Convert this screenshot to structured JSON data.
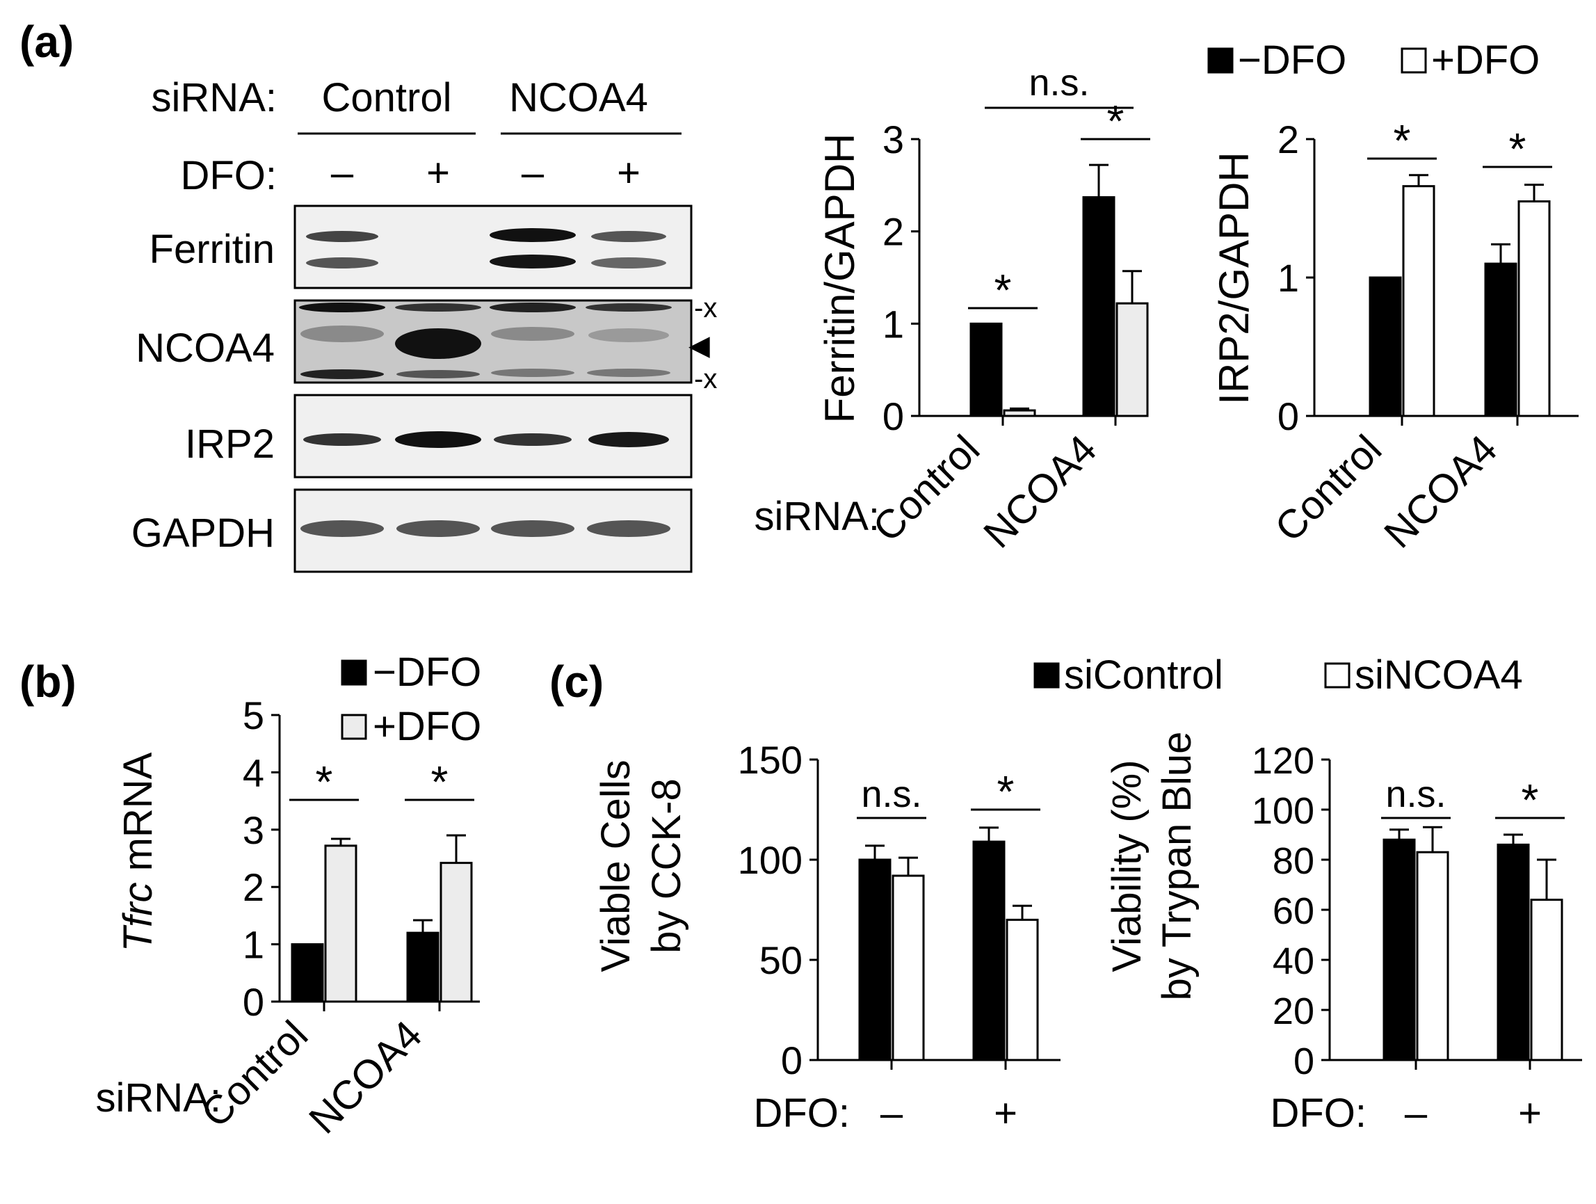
{
  "panel_labels": {
    "a": "(a)",
    "b": "(b)",
    "c": "(c)"
  },
  "blot": {
    "sirna_label": "siRNA:",
    "groups": [
      "Control",
      "NCOA4"
    ],
    "dfo_label": "DFO:",
    "lane_treatments": [
      "–",
      "+",
      "–",
      "+"
    ],
    "rows": [
      "Ferritin",
      "NCOA4",
      "IRP2",
      "GAPDH"
    ],
    "ncoa4_markers": [
      "-x",
      "-x"
    ],
    "arrowhead": "◀"
  },
  "legends": {
    "a": {
      "minus": "−DFO",
      "plus": "+DFO"
    },
    "b": {
      "minus": "−DFO",
      "plus": "+DFO"
    },
    "c": {
      "sicontrol": "siControl",
      "sincoa4": "siNCOA4"
    }
  },
  "colors": {
    "black": "#000000",
    "white": "#ffffff",
    "light_gray": "#ececec"
  },
  "chart_data": [
    {
      "id": "ferritin",
      "type": "bar",
      "ylabel": "Ferritin/GAPDH",
      "xlabel_prefix": "siRNA:",
      "categories": [
        "Control",
        "NCOA4"
      ],
      "ylim": [
        0,
        3
      ],
      "yticks": [
        0,
        1,
        2,
        3
      ],
      "series": [
        {
          "name": "−DFO",
          "values": [
            1.0,
            2.37
          ],
          "errors": [
            0,
            0.35
          ],
          "fill": "#000000"
        },
        {
          "name": "+DFO",
          "values": [
            0.06,
            1.22
          ],
          "errors": [
            0.02,
            0.35
          ],
          "fill": "#ececec"
        }
      ],
      "significance": [
        {
          "label": "*",
          "type": "within",
          "group": 0
        },
        {
          "label": "*",
          "type": "within",
          "group": 1
        },
        {
          "label": "n.s.",
          "type": "across",
          "from": [
            0,
            0
          ],
          "to": [
            1,
            1
          ]
        }
      ]
    },
    {
      "id": "irp2",
      "type": "bar",
      "ylabel": "IRP2/GAPDH",
      "categories": [
        "Control",
        "NCOA4"
      ],
      "ylim": [
        0,
        2
      ],
      "yticks": [
        0,
        1,
        2
      ],
      "series": [
        {
          "name": "−DFO",
          "values": [
            1.0,
            1.1
          ],
          "errors": [
            0,
            0.14
          ],
          "fill": "#000000"
        },
        {
          "name": "+DFO",
          "values": [
            1.66,
            1.55
          ],
          "errors": [
            0.08,
            0.12
          ],
          "fill": "#ffffff"
        }
      ],
      "significance": [
        {
          "label": "*",
          "type": "within",
          "group": 0
        },
        {
          "label": "*",
          "type": "within",
          "group": 1
        }
      ]
    },
    {
      "id": "tfrc",
      "type": "bar",
      "ylabel_italic": "Tfrc",
      "ylabel": " mRNA",
      "xlabel_prefix": "siRNA:",
      "categories": [
        "Control",
        "NCOA4"
      ],
      "ylim": [
        0,
        5
      ],
      "yticks": [
        0,
        1,
        2,
        3,
        4,
        5
      ],
      "series": [
        {
          "name": "−DFO",
          "values": [
            1.0,
            1.2
          ],
          "errors": [
            0,
            0.22
          ],
          "fill": "#000000"
        },
        {
          "name": "+DFO",
          "values": [
            2.72,
            2.42
          ],
          "errors": [
            0.12,
            0.48
          ],
          "fill": "#ececec"
        }
      ],
      "significance": [
        {
          "label": "*",
          "type": "within",
          "group": 0
        },
        {
          "label": "*",
          "type": "within",
          "group": 1
        }
      ]
    },
    {
      "id": "cck8",
      "type": "bar",
      "ylabel_lines": [
        "Viable Cells",
        "by CCK-8"
      ],
      "xlabel_prefix": "DFO:",
      "categories": [
        "–",
        "+"
      ],
      "ylim": [
        0,
        150
      ],
      "yticks": [
        0,
        50,
        100,
        150
      ],
      "series": [
        {
          "name": "siControl",
          "values": [
            100,
            109
          ],
          "errors": [
            7,
            7
          ],
          "fill": "#000000"
        },
        {
          "name": "siNCOA4",
          "values": [
            92,
            70
          ],
          "errors": [
            9,
            7
          ],
          "fill": "#ffffff"
        }
      ],
      "significance": [
        {
          "label": "n.s.",
          "type": "within",
          "group": 0
        },
        {
          "label": "*",
          "type": "within",
          "group": 1
        }
      ]
    },
    {
      "id": "trypan",
      "type": "bar",
      "ylabel_lines": [
        "Viability (%)",
        "by Trypan Blue"
      ],
      "xlabel_prefix": "DFO:",
      "categories": [
        "–",
        "+"
      ],
      "ylim": [
        0,
        120
      ],
      "yticks": [
        0,
        20,
        40,
        60,
        80,
        100,
        120
      ],
      "series": [
        {
          "name": "siControl",
          "values": [
            88,
            86
          ],
          "errors": [
            4,
            4
          ],
          "fill": "#000000"
        },
        {
          "name": "siNCOA4",
          "values": [
            83,
            64
          ],
          "errors": [
            10,
            16
          ],
          "fill": "#ffffff"
        }
      ],
      "significance": [
        {
          "label": "n.s.",
          "type": "within",
          "group": 0
        },
        {
          "label": "*",
          "type": "within",
          "group": 1
        }
      ]
    }
  ]
}
